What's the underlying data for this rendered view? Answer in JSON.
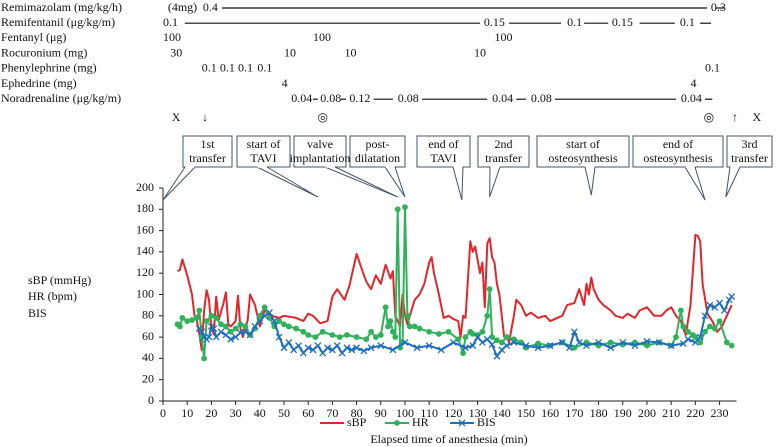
{
  "chart_data": {
    "type": "line",
    "xlabel": "Elapsed time of anesthesia (min)",
    "ylabel": [
      "sBP (mmHg)",
      "HR (bpm)",
      "BIS"
    ],
    "xlim": [
      0,
      237
    ],
    "ylim": [
      0,
      200
    ],
    "xticks": [
      0,
      10,
      20,
      30,
      40,
      50,
      60,
      70,
      80,
      90,
      100,
      110,
      120,
      130,
      140,
      150,
      160,
      170,
      180,
      190,
      200,
      210,
      220,
      230
    ],
    "yticks": [
      0,
      20,
      40,
      60,
      80,
      100,
      120,
      140,
      160,
      180,
      200
    ],
    "legend": "bottom",
    "series": [
      {
        "name": "sBP",
        "color": "#e3262b",
        "marker": "none",
        "x": [
          6,
          7,
          8,
          10,
          12,
          13,
          14,
          15,
          16,
          17,
          18,
          19,
          20,
          21,
          22,
          23,
          25,
          26,
          27,
          28,
          30,
          31,
          32,
          33,
          35,
          36,
          38,
          40,
          42,
          45,
          48,
          50,
          55,
          58,
          60,
          62,
          65,
          68,
          70,
          72,
          75,
          77,
          80,
          82,
          84,
          86,
          88,
          90,
          92,
          94,
          95,
          96,
          97,
          98,
          99,
          100,
          101,
          102,
          104,
          106,
          108,
          110,
          111,
          112,
          114,
          116,
          118,
          120,
          122,
          123,
          124,
          125,
          127,
          128,
          129,
          131,
          132,
          133,
          134,
          135,
          136,
          137,
          138,
          139,
          140,
          141,
          142,
          143,
          145,
          146,
          148,
          150,
          152,
          155,
          158,
          160,
          163,
          165,
          167,
          170,
          172,
          174,
          175,
          176,
          177,
          178,
          180,
          182,
          185,
          187,
          190,
          192,
          195,
          197,
          200,
          203,
          206,
          208,
          210,
          212,
          214,
          216,
          218,
          220,
          221,
          222,
          223,
          225,
          227,
          229,
          231,
          233,
          235
        ],
        "values": [
          122,
          123,
          133,
          118,
          100,
          80,
          75,
          63,
          48,
          85,
          104,
          95,
          68,
          63,
          98,
          76,
          92,
          102,
          72,
          70,
          75,
          99,
          68,
          60,
          76,
          100,
          90,
          70,
          85,
          80,
          78,
          80,
          78,
          75,
          82,
          80,
          73,
          75,
          98,
          105,
          95,
          108,
          138,
          125,
          112,
          105,
          118,
          110,
          128,
          115,
          122,
          80,
          75,
          70,
          100,
          80,
          72,
          80,
          95,
          100,
          110,
          130,
          135,
          120,
          100,
          78,
          80,
          77,
          75,
          60,
          80,
          78,
          150,
          140,
          145,
          120,
          130,
          88,
          148,
          153,
          135,
          130,
          110,
          100,
          80,
          60,
          62,
          55,
          80,
          95,
          90,
          80,
          83,
          78,
          80,
          75,
          78,
          80,
          90,
          92,
          105,
          90,
          110,
          100,
          116,
          105,
          95,
          90,
          85,
          80,
          78,
          82,
          78,
          85,
          88,
          80,
          80,
          85,
          88,
          80,
          75,
          62,
          90,
          156,
          155,
          150,
          110,
          82,
          75,
          65,
          70,
          80,
          90
        ]
      },
      {
        "name": "HR",
        "color": "#2fb35a",
        "marker": "circle",
        "x": [
          6,
          7,
          8,
          10,
          12,
          14,
          15,
          16,
          17,
          18,
          20,
          22,
          24,
          26,
          28,
          30,
          32,
          34,
          36,
          38,
          40,
          42,
          44,
          46,
          48,
          50,
          52,
          55,
          58,
          60,
          63,
          66,
          70,
          73,
          76,
          80,
          84,
          86,
          88,
          90,
          92,
          93,
          94,
          95,
          96,
          97,
          98,
          99,
          100,
          101,
          102,
          104,
          106,
          110,
          114,
          118,
          122,
          124,
          125,
          127,
          128,
          130,
          132,
          134,
          135,
          136,
          138,
          140,
          142,
          145,
          148,
          150,
          155,
          160,
          165,
          170,
          175,
          180,
          185,
          190,
          195,
          200,
          205,
          210,
          212,
          214,
          215,
          217,
          219,
          220,
          222,
          224,
          226,
          228,
          230,
          233,
          235
        ],
        "values": [
          72,
          70,
          78,
          75,
          76,
          78,
          85,
          60,
          40,
          75,
          80,
          78,
          72,
          70,
          65,
          68,
          72,
          70,
          62,
          68,
          80,
          88,
          78,
          70,
          75,
          72,
          70,
          68,
          65,
          62,
          60,
          65,
          62,
          60,
          62,
          60,
          58,
          65,
          60,
          62,
          88,
          70,
          75,
          65,
          60,
          180,
          50,
          55,
          182,
          80,
          70,
          70,
          68,
          65,
          63,
          65,
          58,
          45,
          60,
          65,
          63,
          62,
          65,
          80,
          105,
          60,
          57,
          55,
          60,
          58,
          55,
          50,
          54,
          52,
          55,
          50,
          55,
          52,
          55,
          53,
          55,
          52,
          55,
          52,
          60,
          85,
          70,
          65,
          62,
          60,
          55,
          65,
          70,
          68,
          75,
          55,
          52
        ]
      },
      {
        "name": "BIS",
        "color": "#1f6fbf",
        "marker": "x",
        "x": [
          15,
          16,
          17,
          18,
          19,
          20,
          21,
          22,
          24,
          26,
          28,
          30,
          32,
          34,
          36,
          38,
          40,
          42,
          44,
          46,
          48,
          50,
          52,
          54,
          56,
          58,
          60,
          62,
          64,
          66,
          68,
          70,
          72,
          74,
          76,
          78,
          80,
          83,
          86,
          90,
          95,
          100,
          105,
          110,
          115,
          120,
          125,
          128,
          130,
          132,
          134,
          136,
          138,
          140,
          142,
          145,
          150,
          155,
          160,
          165,
          168,
          170,
          172,
          175,
          180,
          185,
          190,
          195,
          200,
          205,
          210,
          215,
          217,
          220,
          222,
          224,
          226,
          228,
          230,
          232,
          234,
          235
        ],
        "values": [
          68,
          65,
          60,
          58,
          60,
          70,
          68,
          60,
          65,
          62,
          58,
          60,
          64,
          65,
          62,
          70,
          75,
          80,
          83,
          75,
          60,
          50,
          55,
          48,
          52,
          45,
          50,
          48,
          52,
          45,
          50,
          48,
          52,
          45,
          50,
          48,
          50,
          47,
          50,
          52,
          48,
          55,
          50,
          52,
          48,
          55,
          50,
          52,
          60,
          55,
          58,
          53,
          42,
          48,
          52,
          55,
          52,
          50,
          52,
          55,
          50,
          65,
          55,
          52,
          55,
          50,
          55,
          52,
          56,
          55,
          52,
          54,
          58,
          55,
          60,
          80,
          90,
          88,
          92,
          85,
          95,
          98
        ]
      }
    ],
    "drugs": [
      {
        "name": "Remimazolam (mg/kg/h)",
        "items": [
          {
            "t": 2,
            "label": "(4mg)"
          },
          {
            "t": 16.5,
            "label": "0.4"
          },
          {
            "t": 226.4,
            "label": "0.3"
          }
        ],
        "lines": [
          [
            24.4,
            224.8
          ],
          [
            228.5,
            231.8
          ]
        ]
      },
      {
        "name": "Remifentanil (μg/kg/m)",
        "items": [
          {
            "t": 0,
            "label": "0.1"
          },
          {
            "t": 132.6,
            "label": "0.15"
          },
          {
            "t": 167,
            "label": "0.1"
          },
          {
            "t": 185.5,
            "label": "0.15"
          },
          {
            "t": 213.6,
            "label": "0.1"
          }
        ],
        "lines": [
          [
            9,
            131
          ],
          [
            143,
            164.5
          ],
          [
            174,
            184
          ],
          [
            197,
            211.5
          ],
          [
            222,
            226.5
          ]
        ]
      },
      {
        "name": "Fentanyl (μg)",
        "items": [
          {
            "t": 0,
            "label": "100"
          },
          {
            "t": 62,
            "label": "100"
          },
          {
            "t": 137,
            "label": "100"
          }
        ],
        "lines": []
      },
      {
        "name": "Rocuronium (mg)",
        "items": [
          {
            "t": 3,
            "label": "30"
          },
          {
            "t": 50,
            "label": "10"
          },
          {
            "t": 75,
            "label": "10"
          },
          {
            "t": 128.5,
            "label": "10"
          }
        ],
        "lines": []
      },
      {
        "name": "Phenylephrine (mg)",
        "items": [
          {
            "t": 16,
            "label": "0.1"
          },
          {
            "t": 23.5,
            "label": "0.1"
          },
          {
            "t": 31,
            "label": "0.1"
          },
          {
            "t": 39,
            "label": "0.1"
          },
          {
            "t": 224,
            "label": "0.1"
          }
        ],
        "lines": []
      },
      {
        "name": "Ephedrine (mg)",
        "items": [
          {
            "t": 49,
            "label": "4"
          },
          {
            "t": 218,
            "label": "4"
          }
        ],
        "lines": []
      },
      {
        "name": "Noradrenaline (μg/kg/m)",
        "items": [
          {
            "t": 53,
            "label": "0.04"
          },
          {
            "t": 65,
            "label": "0.08"
          },
          {
            "t": 77,
            "label": "0.12"
          },
          {
            "t": 97,
            "label": "0.08"
          },
          {
            "t": 136,
            "label": "0.04"
          },
          {
            "t": 152,
            "label": "0.08"
          },
          {
            "t": 214,
            "label": "0.04"
          }
        ],
        "lines": [
          [
            62,
            64
          ],
          [
            73.5,
            75.6
          ],
          [
            87,
            95
          ],
          [
            107,
            134
          ],
          [
            146,
            150
          ],
          [
            162,
            212
          ],
          [
            224,
            227
          ]
        ]
      }
    ],
    "symbols": [
      {
        "t": 5.4,
        "label": "X"
      },
      {
        "t": 17.4,
        "label": "↓"
      },
      {
        "t": 66,
        "label": "◎"
      },
      {
        "t": 225.6,
        "label": "◎"
      },
      {
        "t": 236.4,
        "label": "↑"
      },
      {
        "t": 245.4,
        "label": "X"
      }
    ],
    "events": [
      {
        "label": [
          "1st",
          "transfer"
        ],
        "time": 0
      },
      {
        "label": [
          "start of",
          "TAVI"
        ],
        "time": 64
      },
      {
        "label": [
          "valve",
          "implantation"
        ],
        "time": 97
      },
      {
        "label": [
          "post-",
          "dilatation"
        ],
        "time": 100
      },
      {
        "label": [
          "end of",
          "TAVI"
        ],
        "time": 123.5
      },
      {
        "label": [
          "2nd",
          "transfer"
        ],
        "time": 135
      },
      {
        "label": [
          "start of",
          "osteosynthesis"
        ],
        "time": 177
      },
      {
        "label": [
          "end of",
          "osteosynthesis"
        ],
        "time": 224
      },
      {
        "label": [
          "3rd",
          "transfer"
        ],
        "time": 232.6
      }
    ]
  }
}
